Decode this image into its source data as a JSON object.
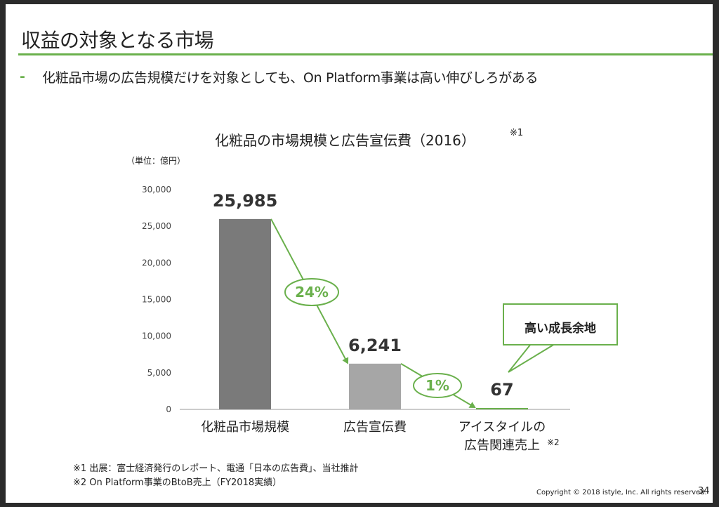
{
  "slide": {
    "title": "収益の対象となる市場",
    "subtitle": "化粧品市場の広告規模だけを対象としても、On Platform事業は高い伸びしろがある",
    "bullet": "-"
  },
  "chart_data": {
    "type": "bar",
    "title": "化粧品の市場規模と広告宣伝費（2016）",
    "title_note": "※1",
    "unit": "（単位：億円）",
    "categories": [
      "化粧品市場規模",
      "広告宣伝費",
      "アイスタイルの\n広告関連売上"
    ],
    "category_notes": [
      "",
      "",
      "※2"
    ],
    "values": [
      25985,
      6241,
      67
    ],
    "value_labels": [
      "25,985",
      "6,241",
      "67"
    ],
    "bar_colors": [
      "#7a7a7a",
      "#a6a6a6",
      "#6ab04c"
    ],
    "ylim": [
      0,
      30000
    ],
    "yticks": [
      0,
      5000,
      10000,
      15000,
      20000,
      25000,
      30000
    ],
    "ytick_labels": [
      "0",
      "5,000",
      "10,000",
      "15,000",
      "20,000",
      "25,000",
      "30,000"
    ],
    "ratio_labels": [
      "24%",
      "1%"
    ],
    "accent_color": "#6ab04c",
    "callout": "高い成長余地",
    "grid": false,
    "legend": "none"
  },
  "footnotes": [
    "※1 出展：富士経済発行のレポート、電通「日本の広告費」、当社推計",
    "※2 On Platform事業のBtoB売上（FY2018実績）"
  ],
  "footer": {
    "copyright": "Copyright © 2018 istyle, Inc. All rights reserved.",
    "page_number": "34"
  }
}
